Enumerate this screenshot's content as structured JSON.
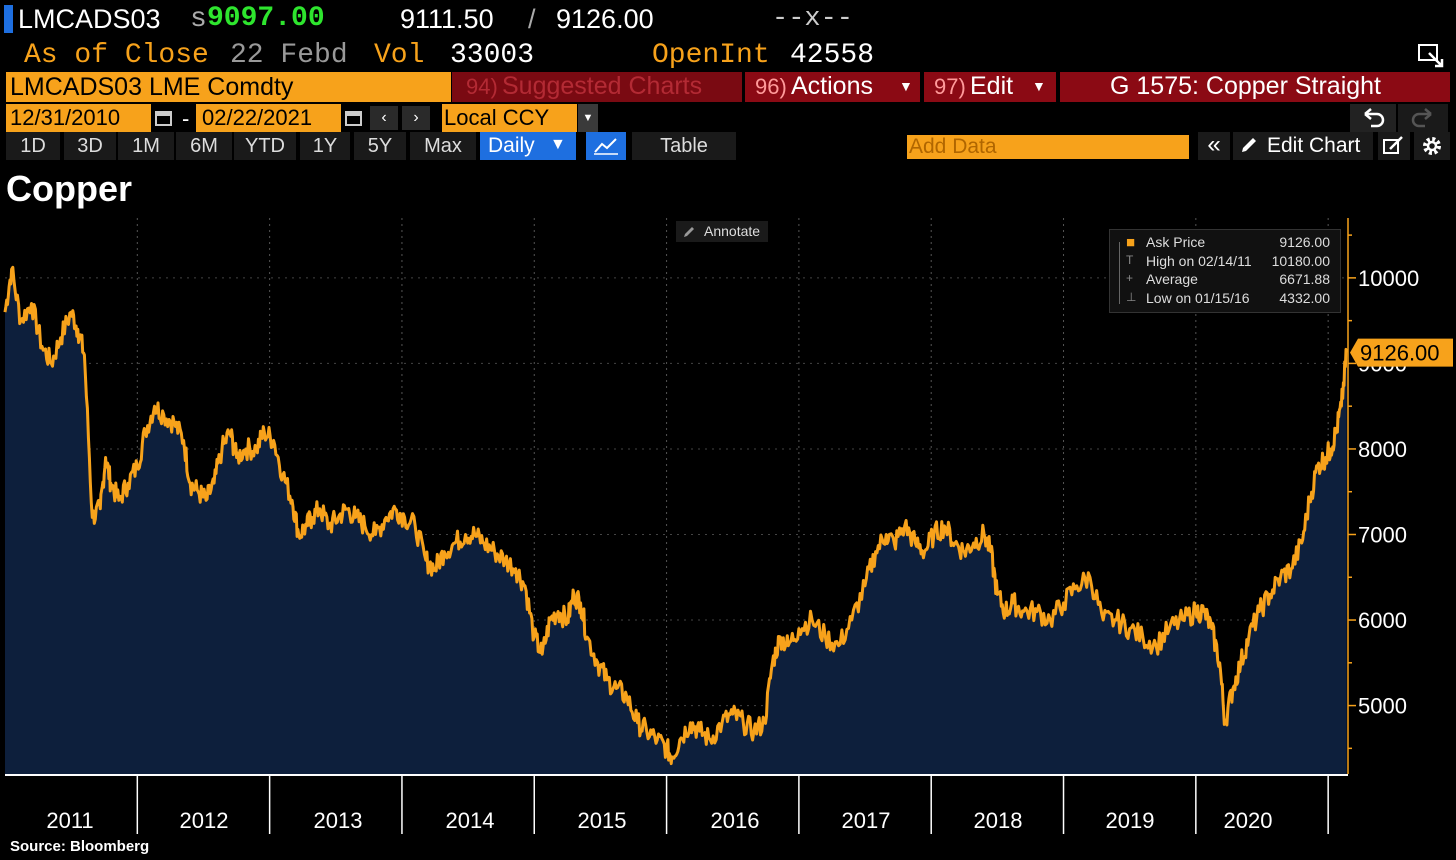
{
  "header": {
    "ticker": "LMCADS03",
    "last_prefix": "s",
    "last_price": "9097.00",
    "bid": "9111.50",
    "separator": "/",
    "ask": "9126.00",
    "change": "--x--"
  },
  "subheader": {
    "as_of_label": "As of Close",
    "date": "22 Febd",
    "vol_label": "Vol",
    "vol_value": "33003",
    "openint_label": "OpenInt",
    "openint_value": "42558"
  },
  "toolbar": {
    "security": "LMCADS03 LME Comdty",
    "suggested_num": "94)",
    "suggested_label": "Suggested Charts",
    "actions_num": "96)",
    "actions_label": "Actions",
    "edit_num": "97)",
    "edit_label": "Edit",
    "g_title": "G 1575: Copper Straight",
    "start_date": "12/31/2010",
    "date_dash": "-",
    "end_date": "02/22/2021",
    "currency": "Local CCY",
    "ranges": [
      "1D",
      "3D",
      "1M",
      "6M",
      "YTD",
      "1Y",
      "5Y",
      "Max"
    ],
    "frequency": "Daily",
    "table_label": "Table",
    "add_data_placeholder": "Add Data",
    "edit_chart_label": "Edit Chart"
  },
  "colors": {
    "line": "#f7a21b",
    "fill": "#0d1f3c",
    "orange": "#f7a21b",
    "red": "#8b0a14",
    "blue": "#1565c0"
  },
  "chart_data": {
    "type": "area",
    "title": "Copper",
    "source": "Source: Bloomberg",
    "annotate_label": "Annotate",
    "series_name": "Ask Price",
    "last_value_label": "9126.00",
    "legend": [
      {
        "label": "Ask Price",
        "value": "9126.00"
      },
      {
        "label": "High on 02/14/11",
        "value": "10180.00"
      },
      {
        "label": "Average",
        "value": "6671.88"
      },
      {
        "label": "Low on 01/15/16",
        "value": "4332.00"
      }
    ],
    "x_tick_labels": [
      "2011",
      "2012",
      "2013",
      "2014",
      "2015",
      "2016",
      "2017",
      "2018",
      "2019",
      "2020"
    ],
    "y_tick_labels": [
      "5000",
      "6000",
      "7000",
      "8000",
      "9000",
      "10000"
    ],
    "ylim": [
      4200,
      10700
    ],
    "xlim": [
      2011.0,
      2021.15
    ],
    "x": [
      2011.0,
      2011.05,
      2011.12,
      2011.2,
      2011.28,
      2011.35,
      2011.42,
      2011.5,
      2011.55,
      2011.6,
      2011.66,
      2011.72,
      2011.76,
      2011.8,
      2011.86,
      2011.93,
      2012.0,
      2012.06,
      2012.13,
      2012.2,
      2012.28,
      2012.35,
      2012.4,
      2012.46,
      2012.52,
      2012.58,
      2012.64,
      2012.7,
      2012.75,
      2012.82,
      2012.9,
      2012.96,
      2013.03,
      2013.1,
      2013.17,
      2013.22,
      2013.28,
      2013.32,
      2013.38,
      2013.45,
      2013.52,
      2013.58,
      2013.65,
      2013.72,
      2013.8,
      2013.88,
      2013.95,
      2014.02,
      2014.1,
      2014.18,
      2014.25,
      2014.32,
      2014.4,
      2014.48,
      2014.55,
      2014.62,
      2014.7,
      2014.78,
      2014.86,
      2014.93,
      2015.0,
      2015.06,
      2015.12,
      2015.18,
      2015.25,
      2015.3,
      2015.35,
      2015.4,
      2015.48,
      2015.55,
      2015.62,
      2015.7,
      2015.78,
      2015.85,
      2015.93,
      2016.0,
      2016.04,
      2016.1,
      2016.18,
      2016.25,
      2016.33,
      2016.42,
      2016.5,
      2016.58,
      2016.66,
      2016.74,
      2016.8,
      2016.86,
      2016.92,
      2017.0,
      2017.1,
      2017.2,
      2017.3,
      2017.4,
      2017.5,
      2017.58,
      2017.66,
      2017.72,
      2017.8,
      2017.88,
      2017.95,
      2018.02,
      2018.1,
      2018.18,
      2018.25,
      2018.32,
      2018.4,
      2018.45,
      2018.5,
      2018.56,
      2018.62,
      2018.7,
      2018.8,
      2018.9,
      2019.0,
      2019.1,
      2019.2,
      2019.3,
      2019.4,
      2019.5,
      2019.6,
      2019.7,
      2019.8,
      2019.9,
      2020.0,
      2020.06,
      2020.12,
      2020.18,
      2020.22,
      2020.28,
      2020.34,
      2020.4,
      2020.48,
      2020.56,
      2020.64,
      2020.72,
      2020.8,
      2020.86,
      2020.92,
      2020.98,
      2021.02,
      2021.06,
      2021.1,
      2021.14
    ],
    "y": [
      9600,
      10100,
      9500,
      9700,
      9200,
      9000,
      9300,
      9600,
      9400,
      9100,
      7200,
      7300,
      7900,
      7600,
      7400,
      7600,
      7800,
      8200,
      8500,
      8400,
      8300,
      8100,
      7600,
      7500,
      7400,
      7600,
      8000,
      8200,
      7900,
      8000,
      8000,
      8200,
      8100,
      7700,
      7400,
      7000,
      7100,
      7200,
      7300,
      7100,
      7200,
      7300,
      7200,
      7100,
      7000,
      7200,
      7300,
      7200,
      7100,
      6700,
      6600,
      6800,
      6900,
      7000,
      7000,
      6900,
      6800,
      6700,
      6600,
      6400,
      5800,
      5600,
      6000,
      6100,
      6000,
      6300,
      6200,
      5800,
      5500,
      5300,
      5200,
      5100,
      4800,
      4700,
      4600,
      4500,
      4400,
      4600,
      4800,
      4700,
      4600,
      4800,
      4900,
      4800,
      4700,
      4800,
      5500,
      5800,
      5700,
      5900,
      6000,
      5800,
      5700,
      6000,
      6400,
      6800,
      7000,
      6900,
      7100,
      6900,
      6800,
      7000,
      7100,
      6900,
      6800,
      6900,
      7000,
      6800,
      6300,
      6100,
      6200,
      6100,
      6100,
      6000,
      6200,
      6400,
      6500,
      6000,
      6000,
      5900,
      5800,
      5700,
      5900,
      6000,
      6100,
      6100,
      5900,
      5500,
      4800,
      5200,
      5500,
      5800,
      6100,
      6300,
      6500,
      6600,
      6900,
      7400,
      7800,
      7900,
      8000,
      8200,
      8500,
      9126
    ]
  }
}
